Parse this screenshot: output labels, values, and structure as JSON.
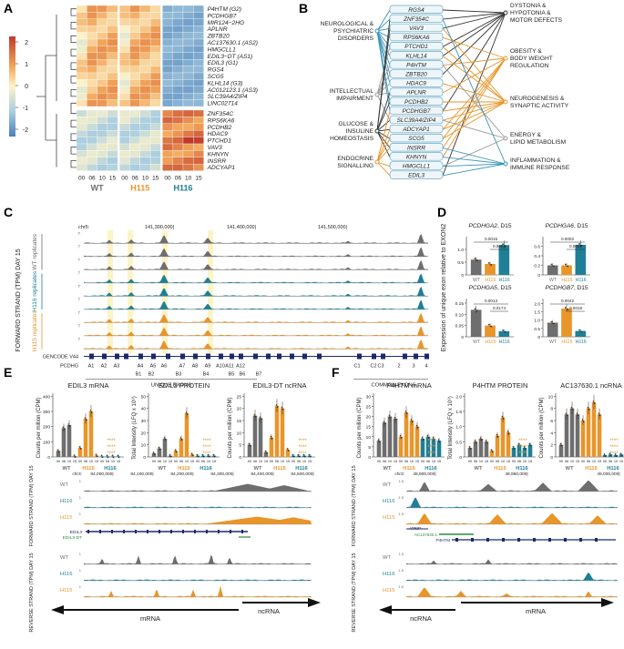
{
  "panels": {
    "A": "A",
    "B": "B",
    "C": "C",
    "D": "D",
    "E": "E",
    "F": "F"
  },
  "colors": {
    "wt": "#6e6e6e",
    "h115": "#e8952a",
    "h116": "#1f7f96",
    "heat_hi": "#c0392b",
    "heat_lo": "#4a7fb8",
    "link_blue": "#3a94b8",
    "link_orange": "#e8952a",
    "link_dark": "#333333",
    "link_gray": "#9a9a9a"
  },
  "panelA": {
    "scale_ticks": [
      "2",
      "1",
      "0",
      "-1",
      "-2"
    ],
    "genes_top": [
      "P4HTM (G2)",
      "PCDHGB7",
      "MIR124−2HG",
      "APLNR",
      "ZBTB20",
      "AC137630.1 (AS2)",
      "HMGCLL1",
      "EDIL3−DT (AS1)",
      "EDIL3 (G1)",
      "RGS4",
      "SCG5",
      "KLHL14 (G3)",
      "AC012123.1 (AS3)",
      "SLC39A4/ZIP4",
      "LINC02714"
    ],
    "genes_bottom": [
      "ZNF354C",
      "RPS6KA6",
      "PCDHB2",
      "HDAC9",
      "PTCHD1",
      "VAV3",
      "KHNYN",
      "INSRR",
      "ADCYAP1"
    ],
    "day_labels": [
      "00",
      "06",
      "10",
      "15",
      "00",
      "06",
      "10",
      "15",
      "00",
      "06",
      "10",
      "15"
    ],
    "groups": [
      "WT",
      "H115",
      "H116"
    ]
  },
  "panelB": {
    "left": [
      "NEUROLOGICAL &\nPSYCHIATRIC\nDISORDERS",
      "INTELLECTUAL\nIMPAIRMENT",
      "GLUCOSE &\nINSULINE\nHOMEOSTASIS",
      "ENDOCRINE\nSIGNALLING"
    ],
    "genes": [
      "RGS4",
      "ZNF354C",
      "VAV3",
      "RPS6KA6",
      "PTCHD1",
      "KLHL14",
      "P4HTM",
      "ZBTB20",
      "HDAC9",
      "APLNR",
      "PCDHB2",
      "PCDHGB7",
      "SLC39A4/ZIP4",
      "ADCYAP1",
      "SCG5",
      "INSRR",
      "KHNYN",
      "HMGCLL1",
      "EDIL3"
    ],
    "right": [
      "DYSTONIA &\nHYPOTONIA &\nMOTOR DEFECTS",
      "OBESITY &\nBODY WEIGHT\nREGULATION",
      "NEUROGENESIS &\nSYNAPTIC ACTIVITY",
      "ENERGY &\nLIPID METABOLISM",
      "INFLAMMATION &\nIMMUNE RESPONSE"
    ]
  },
  "panelC": {
    "ylabel": "FORWARD STRAND (TPM) DAY 15",
    "chr": "chr5:",
    "coords": [
      "141,300,000|",
      "141,400,000|",
      "141,500,000|"
    ],
    "group_labels": [
      "WT replicates",
      "H116 replicates",
      "H115 replicates"
    ],
    "scale_top": "7",
    "scale_zero": "0",
    "gencode": "GENCODE V44",
    "gene": "PCDHG",
    "exon_top": [
      "A1",
      "A2",
      "A3",
      "A4",
      "A5",
      "A6",
      "A7",
      "A8",
      "A9",
      "A10",
      "A11",
      "A12",
      "C1",
      "C2",
      "C3",
      "2",
      "3",
      "4"
    ],
    "exon_bottom": [
      "B1",
      "B2",
      "B3",
      "B4",
      "B5",
      "B6",
      "B7"
    ],
    "unique_exons": "UNIQUE EXONS",
    "common_exons": "COMMON EXONS"
  },
  "panelD": {
    "ylabel": "Expression of unique exon relative to EXON2",
    "groups": [
      "WT",
      "H115",
      "H116"
    ],
    "plots": [
      {
        "gene": "PCDHGA2",
        "day": ", D15",
        "values": [
          0.6,
          0.43,
          1.17
        ],
        "ymax": 1.5,
        "ticks": [
          "0",
          "0.5",
          "1.0"
        ],
        "pvals": [
          "0.0015",
          "0.0054"
        ]
      },
      {
        "gene": "PCDHGA6",
        "day": ", D15",
        "values": [
          0.2,
          0.2,
          0.63
        ],
        "ymax": 0.8,
        "ticks": [
          "0",
          "0.2",
          "0.4",
          "0.6"
        ],
        "pvals": [
          "0.0002",
          "0.0037"
        ]
      },
      {
        "gene": "PCDHGA5",
        "day": ", D15",
        "values": [
          0.12,
          0.05,
          0.025
        ],
        "ymax": 0.17,
        "ticks": [
          "0",
          "0.05",
          "0.10",
          "0.15"
        ],
        "pvals": [
          "0.0013",
          "0.0174"
        ]
      },
      {
        "gene": "PCDHGB7",
        "day": ", D15",
        "values": [
          0.85,
          1.7,
          0.35
        ],
        "ymax": 2.3,
        "ticks": [
          "0",
          "0.5",
          "1.0",
          "1.5",
          "2.0"
        ],
        "pvals": [
          "0.0042",
          "0.0019"
        ]
      }
    ]
  },
  "panelE": {
    "titles": [
      "EDIL3 mRNA",
      "EDIL3 PROTEIN",
      "EDIL3-DT ncRNA"
    ],
    "ylabels": [
      "Counts per million (CPM)",
      "Total Intensity (LFQ x 10⁹)",
      "Counts per million (CPM)"
    ],
    "yticks": [
      [
        "0",
        "100",
        "200",
        "300",
        "400"
      ],
      [
        "0",
        "10",
        "20",
        "30",
        "40",
        "50"
      ],
      [
        "0",
        "5",
        "10",
        "15",
        "20",
        "25"
      ]
    ],
    "stars": "****",
    "chr": "chr3:",
    "coords": [
      "84,000,000|",
      "84,100,000|",
      "84,200,000|",
      "84,300,000|",
      "84,400,000|",
      "84,500,000|"
    ],
    "forward_label": "FORWARD STRAND (TPM) DAY 15",
    "reverse_label": "REVERSE STRAND (TPM) DAY 15",
    "track_labels": [
      "WT",
      "H116",
      "H115"
    ],
    "genes": [
      "EDIL3",
      "EDIL3-DT"
    ],
    "mrna": "mRNA",
    "ncrna": "ncRNA",
    "scale_ticks": [
      "1",
      "0"
    ],
    "mrna_values": {
      "WT": [
        40,
        190,
        210,
        5
      ],
      "H115": [
        60,
        250,
        300,
        10
      ],
      "H116": [
        3,
        3,
        3,
        3
      ]
    },
    "protein_values": {
      "WT": [
        3,
        7,
        15,
        1
      ],
      "H115": [
        5,
        15,
        36,
        2
      ],
      "H116": [
        1,
        1,
        1,
        1
      ]
    },
    "ncrna_values": {
      "WT": [
        5,
        17,
        16,
        2
      ],
      "H115": [
        8,
        21,
        20,
        3
      ],
      "H116": [
        0.5,
        0.5,
        0.5,
        0.5
      ]
    }
  },
  "panelF": {
    "titles": [
      "P4HTM mRNA",
      "P4HTM PROTEIN",
      "AC137630.1 ncRNA"
    ],
    "ylabels": [
      "Counts per million (CPM)",
      "Total Intensity (LFQ x 10⁹)",
      "Counts per million (CPM)"
    ],
    "yticks": [
      [
        "0",
        "5",
        "10",
        "15",
        "20",
        "25",
        "30"
      ],
      [
        "0",
        "0.5",
        "1.0",
        "1.5",
        "2.0"
      ],
      [
        "0",
        "2",
        "4",
        "6",
        "8",
        "10"
      ]
    ],
    "stars": "****",
    "chr": "chr3:",
    "coords": [
      "48,900,000|",
      "48,950,000|",
      "49,000,000|"
    ],
    "forward_label": "FORWARD STRAND (TPM) DAY 15",
    "reverse_label": "REVERSE STRAND (TPM) DAY 15",
    "track_labels": [
      "WT",
      "H116",
      "H115"
    ],
    "genes": [
      "ATRIP",
      "AC137630.1",
      "P4HTM"
    ],
    "mrna": "mRNA",
    "ncrna": "ncRNA",
    "scale_ticks": [
      "1.5",
      "0"
    ],
    "mrna_values": {
      "WT": [
        8,
        17,
        20,
        19
      ],
      "H115": [
        10,
        22,
        18,
        15
      ],
      "H116": [
        9,
        10,
        9,
        8
      ]
    },
    "protein_values": {
      "WT": [
        0.3,
        0.5,
        0.6,
        0.5
      ],
      "H115": [
        0.2,
        0.7,
        1.3,
        0.8
      ],
      "H116": [
        0.3,
        0.4,
        0.3,
        0.4
      ]
    },
    "ncrna_values": {
      "WT": [
        2,
        7,
        8,
        7
      ],
      "H115": [
        6,
        8,
        9,
        7
      ],
      "H116": [
        0.3,
        0.4,
        0.3,
        0.4
      ]
    }
  }
}
